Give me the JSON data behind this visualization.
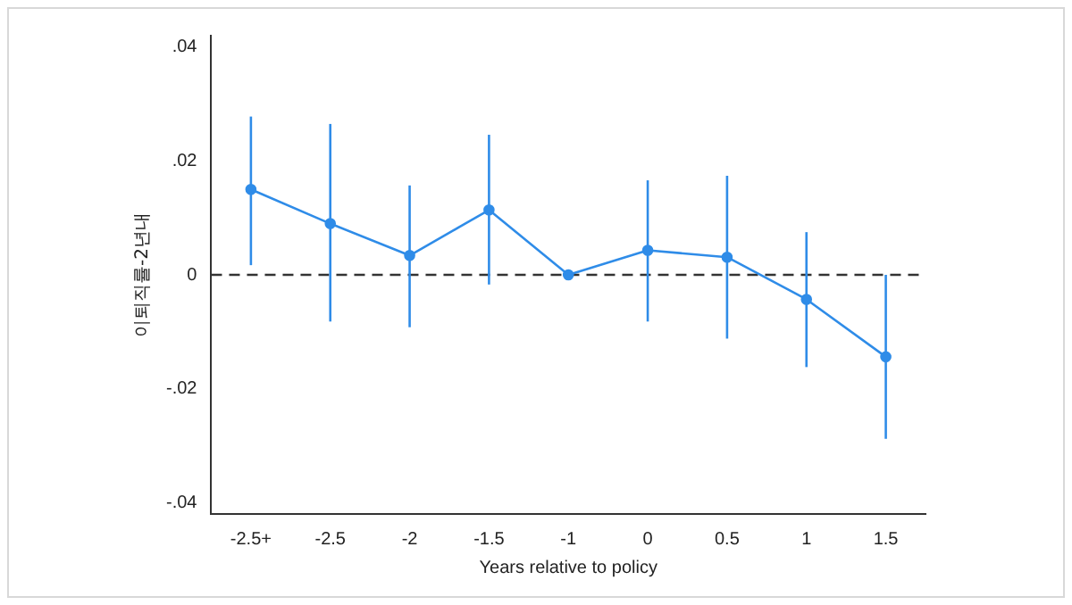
{
  "chart_data": {
    "type": "line",
    "xlabel": "Years relative to policy",
    "ylabel": "이퇴직률-2년내",
    "categories": [
      "-2.5+",
      "-2.5",
      "-2",
      "-1.5",
      "-1",
      "0",
      "0.5",
      "1",
      "1.5"
    ],
    "series": [
      {
        "color": "#2f8ce8",
        "values": [
          0.015,
          0.009,
          0.0034,
          0.0114,
          0,
          0.0043,
          0.0031,
          -0.0043,
          -0.0144
        ],
        "errors": [
          [
            0.0017,
            0.0278
          ],
          [
            -0.0082,
            0.0265
          ],
          [
            -0.0092,
            0.0157
          ],
          [
            -0.0017,
            0.0246
          ],
          null,
          [
            -0.0082,
            0.0166
          ],
          [
            -0.0112,
            0.0174
          ],
          [
            -0.0162,
            0.0075
          ],
          [
            -0.0288,
            0
          ]
        ]
      }
    ],
    "ylim": [
      -0.042,
      0.042
    ],
    "yticks": [
      {
        "value": -0.04,
        "label": "-.04"
      },
      {
        "value": -0.02,
        "label": "-.02"
      },
      0,
      {
        "value": 0.02,
        "label": ".02"
      },
      {
        "value": 0.04,
        "label": ".04"
      }
    ],
    "ref_lines": [
      {
        "axis": "y",
        "value": 0,
        "color": "#333333",
        "line_style": "dashed"
      }
    ],
    "marker": "circle",
    "grid": false,
    "legend": false
  }
}
